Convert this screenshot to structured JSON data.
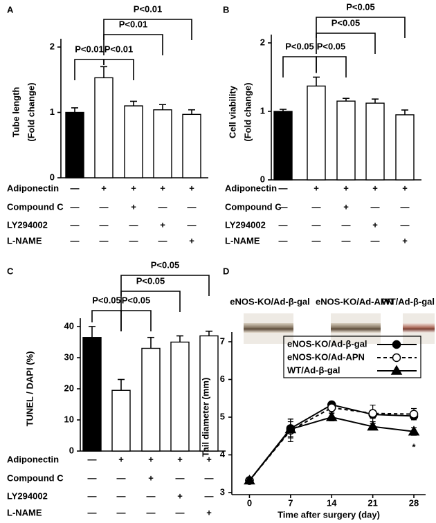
{
  "chart_data": [
    {
      "type": "bar",
      "panel": "A",
      "ylabel": [
        "Tube length",
        "(Fold change)"
      ],
      "values": [
        1.0,
        1.53,
        1.1,
        1.04,
        0.97
      ],
      "errors": [
        0.07,
        0.17,
        0.07,
        0.08,
        0.07
      ],
      "colors": [
        "#000000",
        "#ffffff",
        "#ffffff",
        "#ffffff",
        "#ffffff"
      ],
      "ylim": [
        0,
        2
      ],
      "yticks": [
        0,
        1,
        2
      ],
      "annotations": [
        {
          "text": "P<0.01"
        },
        {
          "text": "P<0.01"
        },
        {
          "text": "P<0.01"
        },
        {
          "text": "P<0.01"
        }
      ],
      "treatments": [
        {
          "name": "Adiponectin",
          "signs": [
            "—",
            "+",
            "+",
            "+",
            "+"
          ]
        },
        {
          "name": "Compound C",
          "signs": [
            "—",
            "—",
            "+",
            "—",
            "—"
          ]
        },
        {
          "name": "LY294002",
          "signs": [
            "—",
            "—",
            "—",
            "+",
            "—"
          ]
        },
        {
          "name": "L-NAME",
          "signs": [
            "—",
            "—",
            "—",
            "—",
            "+"
          ]
        }
      ]
    },
    {
      "type": "bar",
      "panel": "B",
      "ylabel": [
        "Cell viability",
        "(Fold change)"
      ],
      "values": [
        1.0,
        1.37,
        1.15,
        1.12,
        0.95
      ],
      "errors": [
        0.03,
        0.13,
        0.04,
        0.06,
        0.07
      ],
      "colors": [
        "#000000",
        "#ffffff",
        "#ffffff",
        "#ffffff",
        "#ffffff"
      ],
      "ylim": [
        0,
        2
      ],
      "yticks": [
        0,
        1,
        2
      ],
      "annotations": [
        {
          "text": "P<0.05"
        },
        {
          "text": "P<0.05"
        },
        {
          "text": "P<0.05"
        },
        {
          "text": "P<0.05"
        }
      ],
      "treatments": [
        {
          "name": "Adiponectin",
          "signs": [
            "—",
            "+",
            "+",
            "+",
            "+"
          ]
        },
        {
          "name": "Compound C",
          "signs": [
            "—",
            "—",
            "+",
            "—",
            "—"
          ]
        },
        {
          "name": "LY294002",
          "signs": [
            "—",
            "—",
            "—",
            "+",
            "—"
          ]
        },
        {
          "name": "L-NAME",
          "signs": [
            "—",
            "—",
            "—",
            "—",
            "+"
          ]
        }
      ]
    },
    {
      "type": "bar",
      "panel": "C",
      "ylabel": [
        "TUNEL / DAPI (%)"
      ],
      "values": [
        36.5,
        19.5,
        33,
        35,
        37
      ],
      "errors": [
        3.5,
        3.5,
        3.5,
        2,
        1.5
      ],
      "colors": [
        "#000000",
        "#ffffff",
        "#ffffff",
        "#ffffff",
        "#ffffff"
      ],
      "ylim": [
        0,
        40
      ],
      "yticks": [
        0,
        10,
        20,
        30,
        40
      ],
      "annotations": [
        {
          "text": "P<0.05"
        },
        {
          "text": "P<0.05"
        },
        {
          "text": "P<0.05"
        },
        {
          "text": "P<0.05"
        }
      ],
      "treatments": [
        {
          "name": "Adiponectin",
          "signs": [
            "—",
            "+",
            "+",
            "+",
            "+"
          ]
        },
        {
          "name": "Compound C",
          "signs": [
            "—",
            "—",
            "+",
            "—",
            "—"
          ]
        },
        {
          "name": "LY294002",
          "signs": [
            "—",
            "—",
            "—",
            "+",
            "—"
          ]
        },
        {
          "name": "L-NAME",
          "signs": [
            "—",
            "—",
            "—",
            "—",
            "+"
          ]
        }
      ]
    },
    {
      "type": "line",
      "panel": "D",
      "photos": [
        "eNOS-KO/Ad-β-gal",
        "eNOS-KO/Ad-APN",
        "WT/Ad-β-gal"
      ],
      "xlabel": "Time after surgery (day)",
      "ylabel": "Tail diameter (mm)",
      "x": [
        0,
        7,
        14,
        21,
        28
      ],
      "xlim": [
        -3,
        30
      ],
      "xticks": [
        0,
        7,
        14,
        21,
        28
      ],
      "ylim": [
        3,
        7
      ],
      "yticks": [
        3,
        4,
        5,
        6,
        7
      ],
      "series": [
        {
          "name": "eNOS-KO/Ad-β-gal",
          "color": "#000000",
          "marker": "circle",
          "marker_fill": "#000000",
          "line_style": "solid",
          "values": [
            3.32,
            4.7,
            5.33,
            5.07,
            5.03
          ],
          "errors": [
            0.04,
            0.25,
            0.08,
            0.1,
            0.1
          ]
        },
        {
          "name": "eNOS-KO/Ad-APN",
          "color": "#000000",
          "marker": "circle",
          "marker_fill": "#ffffff",
          "line_style": "dashed",
          "values": [
            3.32,
            4.65,
            5.25,
            5.1,
            5.08
          ],
          "errors": [
            0.05,
            0.3,
            0.12,
            0.22,
            0.15
          ]
        },
        {
          "name": "WT/Ad-β-gal",
          "color": "#000000",
          "marker": "triangle",
          "marker_fill": "#000000",
          "line_style": "solid",
          "values": [
            3.32,
            4.68,
            5.0,
            4.75,
            4.62
          ],
          "errors": [
            0.05,
            0.2,
            0.1,
            0.08,
            0.1
          ]
        }
      ],
      "annotations": [
        {
          "text": "*"
        }
      ]
    }
  ]
}
